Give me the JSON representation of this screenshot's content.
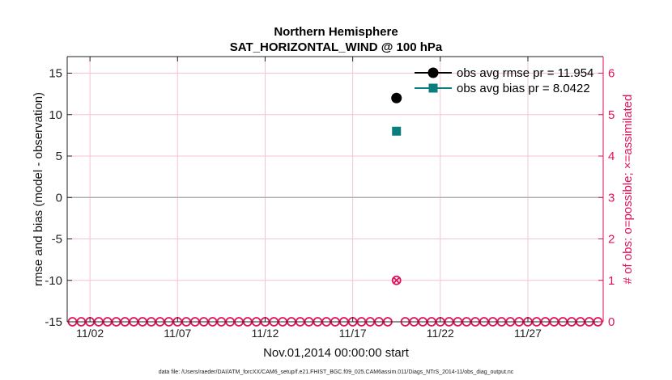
{
  "chart_data": {
    "type": "scatter",
    "title": "Northern Hemisphere",
    "subtitle": "SAT_HORIZONTAL_WIND @ 100 hPa",
    "xlabel": "Nov.01,2014 00:00:00 start",
    "ylabel": "rmse and bias (model - observation)",
    "y2label": "# of obs: o=possible; ×=assimilated",
    "x_ticks": [
      "11/02",
      "11/07",
      "11/12",
      "11/17",
      "11/22",
      "11/27"
    ],
    "x_tick_days": [
      2,
      7,
      12,
      17,
      22,
      27
    ],
    "xlim": [
      0.7,
      31.3
    ],
    "ylim": [
      -15,
      17
    ],
    "y_ticks": [
      -15,
      -10,
      -5,
      0,
      5,
      10,
      15
    ],
    "y2lim": [
      0,
      6.4
    ],
    "y2_ticks": [
      0,
      1,
      2,
      3,
      4,
      5,
      6
    ],
    "grid": true,
    "legend_position": "top-right",
    "colors": {
      "rmse": "#000000",
      "bias": "#0a7d7d",
      "obs_count": "#e0105a",
      "zero_line": "#b0b0b0",
      "grid": "#f4c4d2"
    },
    "series": [
      {
        "name": "obs avg rmse pr = 11.954",
        "axis": "left",
        "marker": "circle",
        "x": [
          19.5
        ],
        "y": [
          12.0
        ]
      },
      {
        "name": "obs avg bias pr = 8.0422",
        "axis": "right-free",
        "marker": "square",
        "x": [
          19.5
        ],
        "y": [
          8.0
        ]
      }
    ],
    "obs_possible": {
      "axis": "right",
      "x": [
        1.0,
        1.5,
        2.0,
        2.5,
        3.0,
        3.5,
        4.0,
        4.5,
        5.0,
        5.5,
        6.0,
        6.5,
        7.0,
        7.5,
        8.0,
        8.5,
        9.0,
        9.5,
        10.0,
        10.5,
        11.0,
        11.5,
        12.0,
        12.5,
        13.0,
        13.5,
        14.0,
        14.5,
        15.0,
        15.5,
        16.0,
        16.5,
        17.0,
        17.5,
        18.0,
        18.5,
        19.0,
        19.5,
        20.0,
        20.5,
        21.0,
        21.5,
        22.0,
        22.5,
        23.0,
        23.5,
        24.0,
        24.5,
        25.0,
        25.5,
        26.0,
        26.5,
        27.0,
        27.5,
        28.0,
        28.5,
        29.0,
        29.5,
        30.0,
        30.5,
        31.0
      ],
      "y": [
        0,
        0,
        0,
        0,
        0,
        0,
        0,
        0,
        0,
        0,
        0,
        0,
        0,
        0,
        0,
        0,
        0,
        0,
        0,
        0,
        0,
        0,
        0,
        0,
        0,
        0,
        0,
        0,
        0,
        0,
        0,
        0,
        0,
        0,
        0,
        0,
        0,
        1,
        0,
        0,
        0,
        0,
        0,
        0,
        0,
        0,
        0,
        0,
        0,
        0,
        0,
        0,
        0,
        0,
        0,
        0,
        0,
        0,
        0,
        0,
        0
      ]
    },
    "obs_assimilated": {
      "axis": "right",
      "x": [
        19.5
      ],
      "y": [
        1
      ]
    }
  },
  "footnote": "data file: /Users/raeder/DAI/ATM_forcXX/CAM6_setup/f.e21.FHIST_BGC.f09_025.CAM6assim.011/Diags_NTrS_2014-11/obs_diag_output.nc"
}
